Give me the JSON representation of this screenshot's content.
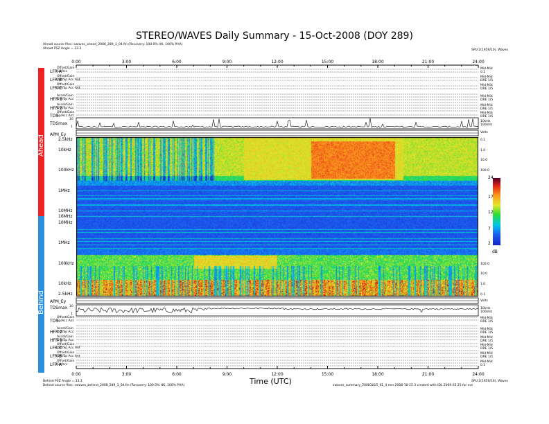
{
  "chart_data": {
    "type": "heatmap",
    "title": "STEREO/WAVES Daily Summary - 15-Oct-2008 (DOY 289)",
    "xlabel": "Time (UTC)",
    "x_ticks": [
      "0:00",
      "3:00",
      "6:00",
      "9:00",
      "12:00",
      "15:00",
      "18:00",
      "21:00",
      "24:00"
    ],
    "xlim_hours": [
      0,
      24
    ],
    "ahead_freq_ticks": [
      "2.5kHz",
      "10kHz",
      "100kHz",
      "1MHz",
      "10MHz"
    ],
    "behind_freq_ticks": [
      "16MHz",
      "10MHz",
      "1MHz",
      "100kHz",
      "10kHz",
      "2.5kHz"
    ],
    "colorbar": {
      "ticks": [
        "24",
        "17",
        "12",
        "7",
        "2"
      ],
      "unit": "dB",
      "range": [
        2,
        24
      ]
    },
    "spacecraft": [
      "Ahead",
      "Behind"
    ],
    "colors": {
      "ahead": "#ee2222",
      "behind": "#2b8fe0",
      "background_noise": "#1a2fd6"
    }
  },
  "header": {
    "ahead_source": "Ahead source files: swaves_ahead_2008_289_1_04.fin (Recovery: 100.0% HK, 100% PHA)",
    "ahead_angle": "Ahead PSZ Angle = 33.3",
    "right_note": "SPU 2(1959/10), Waves"
  },
  "footer": {
    "behind_angle": "Behind PSZ Angle = 33.3",
    "behind_source": "Behind source files: swaves_behind_2008_289_1_04.fin (Recovery: 100.0% HK, 100% PHA)",
    "right_note": "SPU 2(1959/10), Waves",
    "right_note2": "swaves_summary_20081015_01_4 min 2008-10-15 3 created with IDL 2009.03.25 for vvs"
  },
  "ahead_rows": [
    {
      "label": "LFR A",
      "sub1": "Offset/Gain",
      "sub2": "Sp/Acc",
      "right1": "Mid-Mid",
      "right2": "0.1"
    },
    {
      "label": "LFR B",
      "sub1": "Offset/Gain",
      "sub2": "Diff/Sp Acc Ant",
      "right1": "Mid-Mid",
      "right2": "DRE 1/5"
    },
    {
      "label": "LFR C",
      "sub1": "Offset/Gain",
      "sub2": "Diff/Sp Acc Ant",
      "right1": "Mid-Mid",
      "right2": "DRE 1/5"
    },
    {
      "label": "HFR 1",
      "sub1": "Accel/Gain",
      "sub2": "Diff/Sp Acc",
      "right1": "Mid-Mid",
      "right2": "DRE 1/5"
    },
    {
      "label": "HFR 2",
      "sub1": "Accel/Gain",
      "sub2": "Diff/Sp Acc",
      "right1": "Mid-Mid",
      "right2": "DRE 1/5"
    },
    {
      "label": "TDS",
      "sub1": "Offset/Gain",
      "sub2": "Sp/Acc Ant",
      "right1": "Mid-Mid",
      "right2": "DRE 1/5"
    }
  ],
  "behind_rows": [
    {
      "label": "TDS",
      "sub1": "Offset/Gain",
      "sub2": "Sp/Acc Ant",
      "right1": "Mid-Mid",
      "right2": "DRE 1/5"
    },
    {
      "label": "HFR 2",
      "sub1": "Accel/Gain",
      "sub2": "Diff/Sp Acc",
      "right1": "Mid-Mid",
      "right2": "DRE 1/5"
    },
    {
      "label": "HFR 1",
      "sub1": "Accel/Gain",
      "sub2": "Diff/Sp Acc",
      "right1": "Mid-Mid",
      "right2": "DRE 1/5"
    },
    {
      "label": "LFR C",
      "sub1": "Offset/Gain",
      "sub2": "Diff/Sp Acc Ant",
      "right1": "Mid-Mid",
      "right2": "DRE 1/5"
    },
    {
      "label": "LFR B",
      "sub1": "Offset/Gain",
      "sub2": "Diff/Sp Acc Ant",
      "right1": "Mid-Mid",
      "right2": "DRE 1/5"
    },
    {
      "label": "LFR A",
      "sub1": "Offset/Gain",
      "sub2": "Sp/Acc",
      "right1": "Mid-Mid",
      "right2": "0.1"
    }
  ],
  "panels": {
    "tdsmax_label": "TDSmax",
    "tdsmax_right": "10kHz",
    "tdsmax_right2": "100kHz",
    "tdsmax_ticks": [
      "10",
      "1"
    ],
    "apm_label": "APM_Ey",
    "apm_right": "Volts"
  },
  "ahead_right_ticks": [
    "0.1",
    "1.0",
    "10.0",
    "100.0"
  ],
  "behind_right_ticks": [
    "100.0",
    "10.0",
    "1.0",
    "0.1"
  ]
}
